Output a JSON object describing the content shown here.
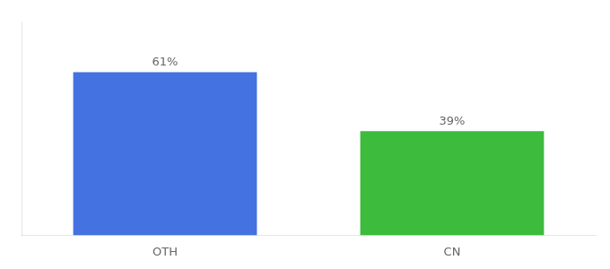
{
  "chart_data": {
    "type": "bar",
    "categories": [
      "OTH",
      "CN"
    ],
    "values": [
      61,
      39
    ],
    "value_labels": [
      "61%",
      "39%"
    ],
    "data_labels": true,
    "colors": [
      "#4472e0",
      "#3dbb3d"
    ],
    "ylim": [
      0,
      80
    ],
    "yticks": [],
    "tick_labels": "x",
    "grid": false
  }
}
